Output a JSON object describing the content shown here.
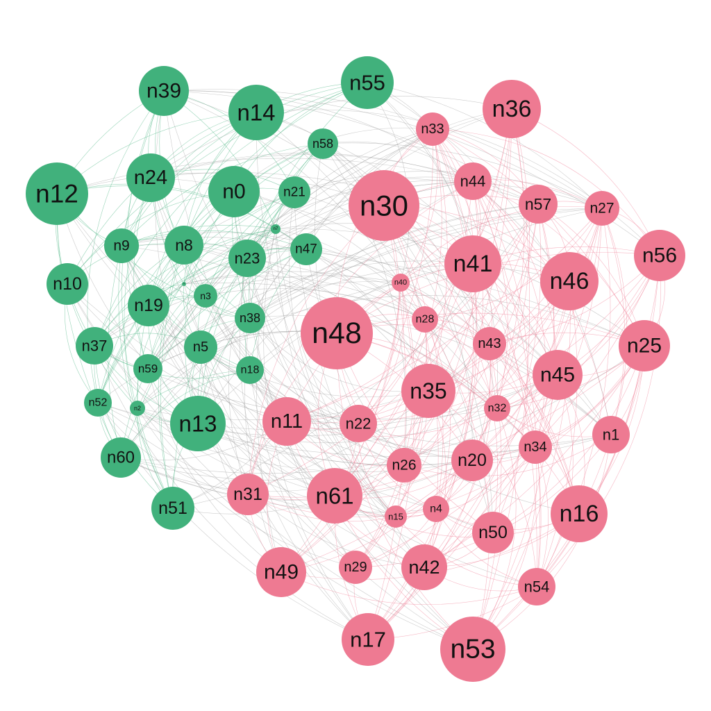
{
  "colors": {
    "group_a": "#41b17c",
    "group_b": "#ee7a92",
    "edge_a": "#41b17c",
    "edge_b": "#ee7a92",
    "edge_mixed": "#9a9a9a",
    "label": "#111111"
  },
  "nodes": [
    {
      "id": "n0",
      "group": "a"
    },
    {
      "id": "n1",
      "group": "b"
    },
    {
      "id": "n2",
      "group": "a"
    },
    {
      "id": "n3",
      "group": "a"
    },
    {
      "id": "n4",
      "group": "b"
    },
    {
      "id": "n5",
      "group": "a"
    },
    {
      "id": "n6",
      "group": "a"
    },
    {
      "id": "n7",
      "group": "a"
    },
    {
      "id": "n8",
      "group": "a"
    },
    {
      "id": "n9",
      "group": "a"
    },
    {
      "id": "n10",
      "group": "a"
    },
    {
      "id": "n11",
      "group": "b"
    },
    {
      "id": "n12",
      "group": "a"
    },
    {
      "id": "n13",
      "group": "a"
    },
    {
      "id": "n14",
      "group": "a"
    },
    {
      "id": "n15",
      "group": "b"
    },
    {
      "id": "n16",
      "group": "b"
    },
    {
      "id": "n17",
      "group": "b"
    },
    {
      "id": "n18",
      "group": "a"
    },
    {
      "id": "n19",
      "group": "a"
    },
    {
      "id": "n20",
      "group": "b"
    },
    {
      "id": "n21",
      "group": "a"
    },
    {
      "id": "n22",
      "group": "b"
    },
    {
      "id": "n23",
      "group": "a"
    },
    {
      "id": "n24",
      "group": "a"
    },
    {
      "id": "n25",
      "group": "b"
    },
    {
      "id": "n26",
      "group": "b"
    },
    {
      "id": "n27",
      "group": "b"
    },
    {
      "id": "n28",
      "group": "b"
    },
    {
      "id": "n29",
      "group": "b"
    },
    {
      "id": "n30",
      "group": "b"
    },
    {
      "id": "n31",
      "group": "b"
    },
    {
      "id": "n32",
      "group": "b"
    },
    {
      "id": "n33",
      "group": "b"
    },
    {
      "id": "n34",
      "group": "b"
    },
    {
      "id": "n35",
      "group": "b"
    },
    {
      "id": "n36",
      "group": "b"
    },
    {
      "id": "n37",
      "group": "a"
    },
    {
      "id": "n38",
      "group": "a"
    },
    {
      "id": "n39",
      "group": "a"
    },
    {
      "id": "n40",
      "group": "b"
    },
    {
      "id": "n41",
      "group": "b"
    },
    {
      "id": "n42",
      "group": "b"
    },
    {
      "id": "n43",
      "group": "b"
    },
    {
      "id": "n44",
      "group": "b"
    },
    {
      "id": "n45",
      "group": "b"
    },
    {
      "id": "n46",
      "group": "b"
    },
    {
      "id": "n47",
      "group": "a"
    },
    {
      "id": "n48",
      "group": "b"
    },
    {
      "id": "n49",
      "group": "b"
    },
    {
      "id": "n50",
      "group": "b"
    },
    {
      "id": "n51",
      "group": "a"
    },
    {
      "id": "n52",
      "group": "a"
    },
    {
      "id": "n53",
      "group": "b"
    },
    {
      "id": "n54",
      "group": "b"
    },
    {
      "id": "n55",
      "group": "a"
    },
    {
      "id": "n56",
      "group": "b"
    },
    {
      "id": "n57",
      "group": "b"
    },
    {
      "id": "n58",
      "group": "a"
    },
    {
      "id": "n59",
      "group": "a"
    },
    {
      "id": "n60",
      "group": "a"
    },
    {
      "id": "n61",
      "group": "b"
    }
  ]
}
